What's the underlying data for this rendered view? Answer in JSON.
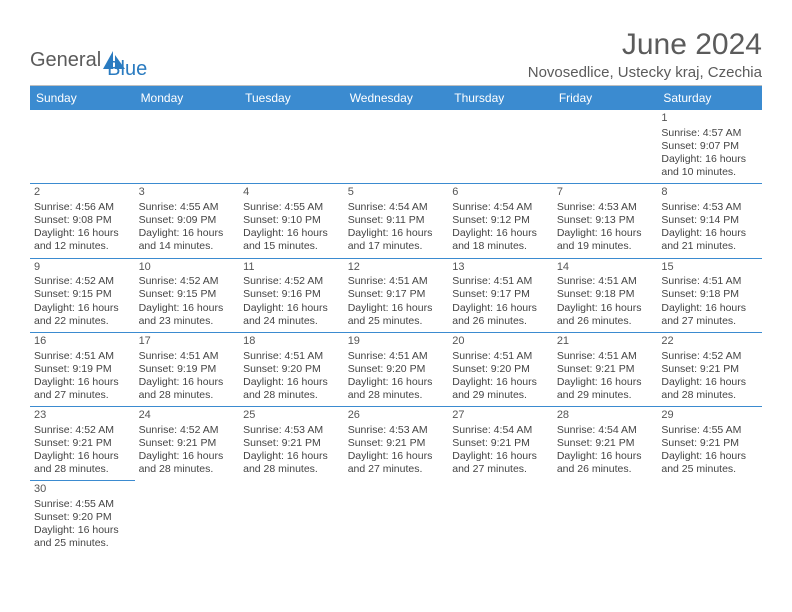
{
  "logo": {
    "word1": "General",
    "word2": "Blue"
  },
  "title": "June 2024",
  "location": "Novosedlice, Ustecky kraj, Czechia",
  "colors": {
    "header_bg": "#3b8bd0",
    "header_text": "#ffffff",
    "cell_border": "#3b8bd0",
    "title_color": "#5b5b5b",
    "text_color": "#444444",
    "logo_gray": "#5b5b5b",
    "logo_blue": "#2a7bc0",
    "page_bg": "#ffffff"
  },
  "day_headers": [
    "Sunday",
    "Monday",
    "Tuesday",
    "Wednesday",
    "Thursday",
    "Friday",
    "Saturday"
  ],
  "weeks": [
    [
      null,
      null,
      null,
      null,
      null,
      null,
      {
        "n": "1",
        "sr": "Sunrise: 4:57 AM",
        "ss": "Sunset: 9:07 PM",
        "d1": "Daylight: 16 hours",
        "d2": "and 10 minutes."
      }
    ],
    [
      {
        "n": "2",
        "sr": "Sunrise: 4:56 AM",
        "ss": "Sunset: 9:08 PM",
        "d1": "Daylight: 16 hours",
        "d2": "and 12 minutes."
      },
      {
        "n": "3",
        "sr": "Sunrise: 4:55 AM",
        "ss": "Sunset: 9:09 PM",
        "d1": "Daylight: 16 hours",
        "d2": "and 14 minutes."
      },
      {
        "n": "4",
        "sr": "Sunrise: 4:55 AM",
        "ss": "Sunset: 9:10 PM",
        "d1": "Daylight: 16 hours",
        "d2": "and 15 minutes."
      },
      {
        "n": "5",
        "sr": "Sunrise: 4:54 AM",
        "ss": "Sunset: 9:11 PM",
        "d1": "Daylight: 16 hours",
        "d2": "and 17 minutes."
      },
      {
        "n": "6",
        "sr": "Sunrise: 4:54 AM",
        "ss": "Sunset: 9:12 PM",
        "d1": "Daylight: 16 hours",
        "d2": "and 18 minutes."
      },
      {
        "n": "7",
        "sr": "Sunrise: 4:53 AM",
        "ss": "Sunset: 9:13 PM",
        "d1": "Daylight: 16 hours",
        "d2": "and 19 minutes."
      },
      {
        "n": "8",
        "sr": "Sunrise: 4:53 AM",
        "ss": "Sunset: 9:14 PM",
        "d1": "Daylight: 16 hours",
        "d2": "and 21 minutes."
      }
    ],
    [
      {
        "n": "9",
        "sr": "Sunrise: 4:52 AM",
        "ss": "Sunset: 9:15 PM",
        "d1": "Daylight: 16 hours",
        "d2": "and 22 minutes."
      },
      {
        "n": "10",
        "sr": "Sunrise: 4:52 AM",
        "ss": "Sunset: 9:15 PM",
        "d1": "Daylight: 16 hours",
        "d2": "and 23 minutes."
      },
      {
        "n": "11",
        "sr": "Sunrise: 4:52 AM",
        "ss": "Sunset: 9:16 PM",
        "d1": "Daylight: 16 hours",
        "d2": "and 24 minutes."
      },
      {
        "n": "12",
        "sr": "Sunrise: 4:51 AM",
        "ss": "Sunset: 9:17 PM",
        "d1": "Daylight: 16 hours",
        "d2": "and 25 minutes."
      },
      {
        "n": "13",
        "sr": "Sunrise: 4:51 AM",
        "ss": "Sunset: 9:17 PM",
        "d1": "Daylight: 16 hours",
        "d2": "and 26 minutes."
      },
      {
        "n": "14",
        "sr": "Sunrise: 4:51 AM",
        "ss": "Sunset: 9:18 PM",
        "d1": "Daylight: 16 hours",
        "d2": "and 26 minutes."
      },
      {
        "n": "15",
        "sr": "Sunrise: 4:51 AM",
        "ss": "Sunset: 9:18 PM",
        "d1": "Daylight: 16 hours",
        "d2": "and 27 minutes."
      }
    ],
    [
      {
        "n": "16",
        "sr": "Sunrise: 4:51 AM",
        "ss": "Sunset: 9:19 PM",
        "d1": "Daylight: 16 hours",
        "d2": "and 27 minutes."
      },
      {
        "n": "17",
        "sr": "Sunrise: 4:51 AM",
        "ss": "Sunset: 9:19 PM",
        "d1": "Daylight: 16 hours",
        "d2": "and 28 minutes."
      },
      {
        "n": "18",
        "sr": "Sunrise: 4:51 AM",
        "ss": "Sunset: 9:20 PM",
        "d1": "Daylight: 16 hours",
        "d2": "and 28 minutes."
      },
      {
        "n": "19",
        "sr": "Sunrise: 4:51 AM",
        "ss": "Sunset: 9:20 PM",
        "d1": "Daylight: 16 hours",
        "d2": "and 28 minutes."
      },
      {
        "n": "20",
        "sr": "Sunrise: 4:51 AM",
        "ss": "Sunset: 9:20 PM",
        "d1": "Daylight: 16 hours",
        "d2": "and 29 minutes."
      },
      {
        "n": "21",
        "sr": "Sunrise: 4:51 AM",
        "ss": "Sunset: 9:21 PM",
        "d1": "Daylight: 16 hours",
        "d2": "and 29 minutes."
      },
      {
        "n": "22",
        "sr": "Sunrise: 4:52 AM",
        "ss": "Sunset: 9:21 PM",
        "d1": "Daylight: 16 hours",
        "d2": "and 28 minutes."
      }
    ],
    [
      {
        "n": "23",
        "sr": "Sunrise: 4:52 AM",
        "ss": "Sunset: 9:21 PM",
        "d1": "Daylight: 16 hours",
        "d2": "and 28 minutes."
      },
      {
        "n": "24",
        "sr": "Sunrise: 4:52 AM",
        "ss": "Sunset: 9:21 PM",
        "d1": "Daylight: 16 hours",
        "d2": "and 28 minutes."
      },
      {
        "n": "25",
        "sr": "Sunrise: 4:53 AM",
        "ss": "Sunset: 9:21 PM",
        "d1": "Daylight: 16 hours",
        "d2": "and 28 minutes."
      },
      {
        "n": "26",
        "sr": "Sunrise: 4:53 AM",
        "ss": "Sunset: 9:21 PM",
        "d1": "Daylight: 16 hours",
        "d2": "and 27 minutes."
      },
      {
        "n": "27",
        "sr": "Sunrise: 4:54 AM",
        "ss": "Sunset: 9:21 PM",
        "d1": "Daylight: 16 hours",
        "d2": "and 27 minutes."
      },
      {
        "n": "28",
        "sr": "Sunrise: 4:54 AM",
        "ss": "Sunset: 9:21 PM",
        "d1": "Daylight: 16 hours",
        "d2": "and 26 minutes."
      },
      {
        "n": "29",
        "sr": "Sunrise: 4:55 AM",
        "ss": "Sunset: 9:21 PM",
        "d1": "Daylight: 16 hours",
        "d2": "and 25 minutes."
      }
    ],
    [
      {
        "n": "30",
        "sr": "Sunrise: 4:55 AM",
        "ss": "Sunset: 9:20 PM",
        "d1": "Daylight: 16 hours",
        "d2": "and 25 minutes."
      },
      null,
      null,
      null,
      null,
      null,
      null
    ]
  ]
}
